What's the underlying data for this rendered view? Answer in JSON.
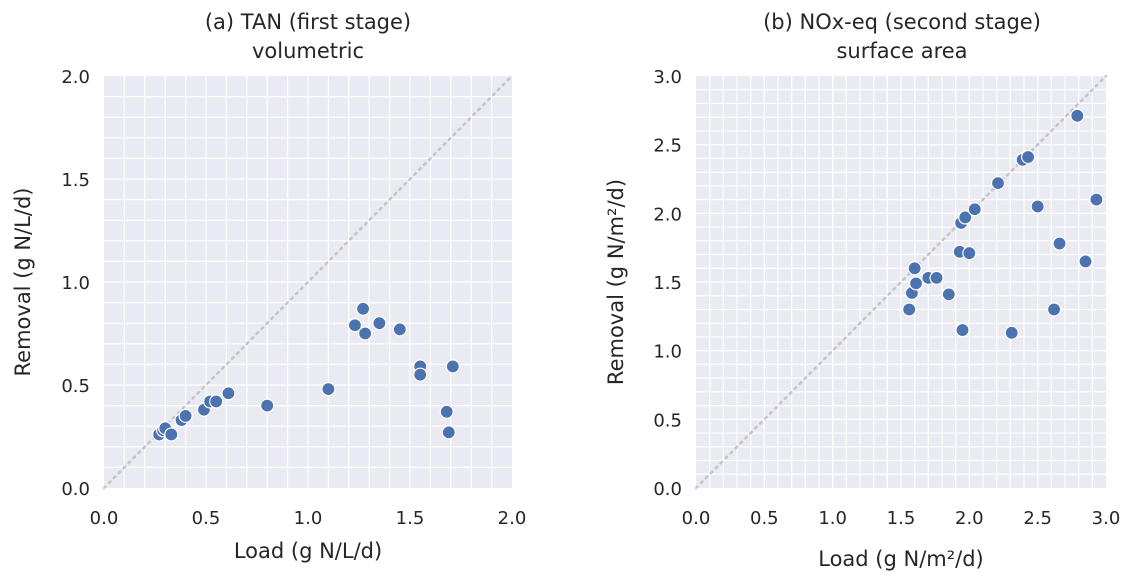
{
  "colors": {
    "background": "#eaeaf2",
    "grid": "#ffffff",
    "points": "#4c72b0",
    "identity_line": "#c4c4c8",
    "text": "#262626"
  },
  "chart_data": [
    {
      "type": "scatter",
      "title_line1": "(a) TAN (first stage)",
      "title_line2": "volumetric",
      "xlabel": "Load (g N/L/d)",
      "ylabel": "Removal (g N/L/d)",
      "xlim": [
        0,
        2
      ],
      "ylim": [
        0,
        2
      ],
      "xticks": [
        "0.0",
        "0.5",
        "1.0",
        "1.5",
        "2.0"
      ],
      "yticks": [
        "0.0",
        "0.5",
        "1.0",
        "1.5",
        "2.0"
      ],
      "grid": true,
      "reference_line": "y = x (dotted)",
      "points": [
        {
          "x": 0.27,
          "y": 0.26
        },
        {
          "x": 0.29,
          "y": 0.28
        },
        {
          "x": 0.3,
          "y": 0.29
        },
        {
          "x": 0.33,
          "y": 0.26
        },
        {
          "x": 0.38,
          "y": 0.33
        },
        {
          "x": 0.4,
          "y": 0.35
        },
        {
          "x": 0.49,
          "y": 0.38
        },
        {
          "x": 0.52,
          "y": 0.42
        },
        {
          "x": 0.55,
          "y": 0.42
        },
        {
          "x": 0.61,
          "y": 0.46
        },
        {
          "x": 0.8,
          "y": 0.4
        },
        {
          "x": 1.1,
          "y": 0.48
        },
        {
          "x": 1.23,
          "y": 0.79
        },
        {
          "x": 1.27,
          "y": 0.87
        },
        {
          "x": 1.28,
          "y": 0.75
        },
        {
          "x": 1.35,
          "y": 0.8
        },
        {
          "x": 1.45,
          "y": 0.77
        },
        {
          "x": 1.55,
          "y": 0.59
        },
        {
          "x": 1.55,
          "y": 0.55
        },
        {
          "x": 1.68,
          "y": 0.37
        },
        {
          "x": 1.69,
          "y": 0.27
        },
        {
          "x": 1.71,
          "y": 0.59
        }
      ]
    },
    {
      "type": "scatter",
      "title_line1": "(b) NOx-eq (second stage)",
      "title_line2": "surface area",
      "xlabel": "Load (g N/m²/d)",
      "ylabel": "Removal (g N/m²/d)",
      "xlim": [
        0,
        3
      ],
      "ylim": [
        0,
        3
      ],
      "xticks": [
        "0.0",
        "0.5",
        "1.0",
        "1.5",
        "2.0",
        "2.5",
        "3.0"
      ],
      "yticks": [
        "0.0",
        "0.5",
        "1.0",
        "1.5",
        "2.0",
        "2.5",
        "3.0"
      ],
      "grid": true,
      "reference_line": "y = x (dotted)",
      "points": [
        {
          "x": 1.56,
          "y": 1.3
        },
        {
          "x": 1.58,
          "y": 1.42
        },
        {
          "x": 1.6,
          "y": 1.6
        },
        {
          "x": 1.61,
          "y": 1.49
        },
        {
          "x": 1.7,
          "y": 1.53
        },
        {
          "x": 1.76,
          "y": 1.53
        },
        {
          "x": 1.85,
          "y": 1.41
        },
        {
          "x": 1.93,
          "y": 1.72
        },
        {
          "x": 1.94,
          "y": 1.93
        },
        {
          "x": 1.95,
          "y": 1.15
        },
        {
          "x": 1.97,
          "y": 1.97
        },
        {
          "x": 2.0,
          "y": 1.71
        },
        {
          "x": 2.04,
          "y": 2.03
        },
        {
          "x": 2.21,
          "y": 2.22
        },
        {
          "x": 2.31,
          "y": 1.13
        },
        {
          "x": 2.39,
          "y": 2.39
        },
        {
          "x": 2.43,
          "y": 2.41
        },
        {
          "x": 2.5,
          "y": 2.05
        },
        {
          "x": 2.62,
          "y": 1.3
        },
        {
          "x": 2.66,
          "y": 1.78
        },
        {
          "x": 2.79,
          "y": 2.71
        },
        {
          "x": 2.85,
          "y": 1.65
        },
        {
          "x": 2.93,
          "y": 2.1
        }
      ]
    }
  ]
}
